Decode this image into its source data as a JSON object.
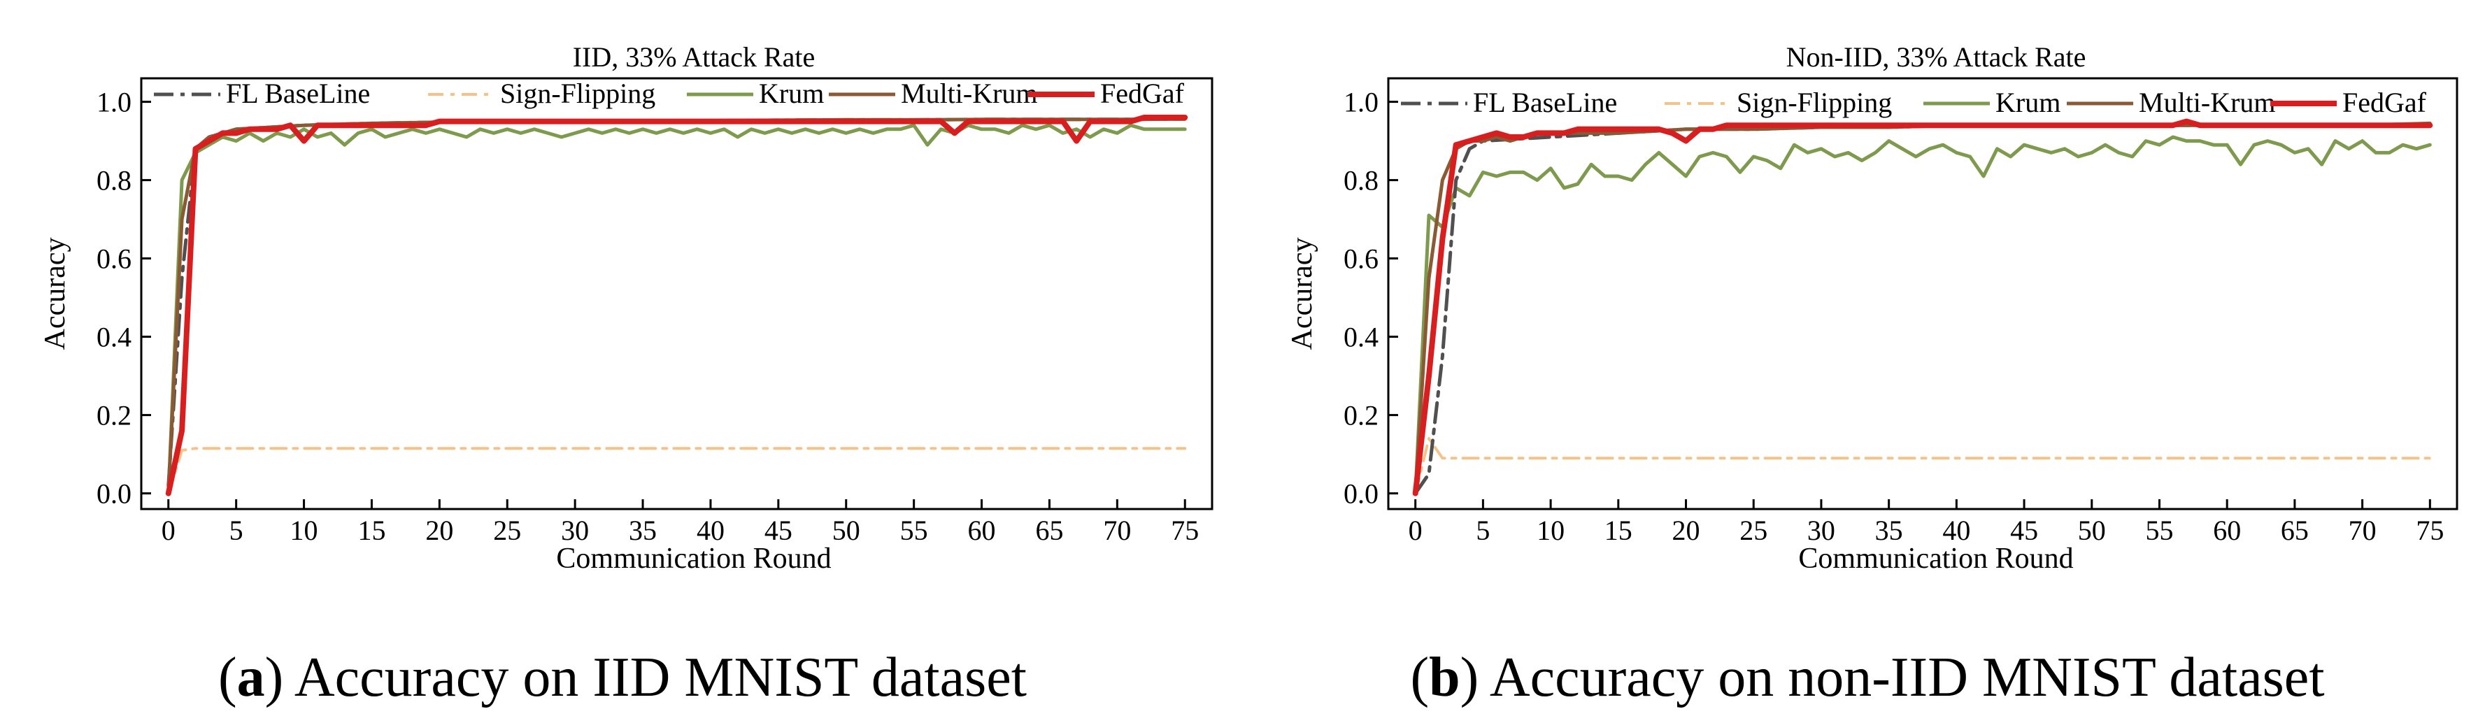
{
  "colors": {
    "baseline": "#505050",
    "sign_flipping": "#F5C28A",
    "krum": "#7E9A4C",
    "multi_krum": "#8B5A34",
    "fedgaf": "#D81E1E"
  },
  "captions": [
    {
      "letter": "a",
      "text": "Accuracy on IID MNIST dataset"
    },
    {
      "letter": "b",
      "text": "Accuracy on non-IID MNIST dataset"
    }
  ],
  "chart_data": [
    {
      "type": "line",
      "title": "IID, 33% Attack Rate",
      "xlabel": "Communication Round",
      "ylabel": "Accuracy",
      "xlim": [
        -2,
        77
      ],
      "ylim": [
        -0.04,
        1.06
      ],
      "xticks": [
        0,
        5,
        10,
        15,
        20,
        25,
        30,
        35,
        40,
        45,
        50,
        55,
        60,
        65,
        70,
        75
      ],
      "yticks": [
        0.0,
        0.2,
        0.4,
        0.6,
        0.8,
        1.0
      ],
      "ytick_labels": [
        "0.0",
        "0.2",
        "0.4",
        "0.6",
        "0.8",
        "1.0"
      ],
      "legend": [
        "FL BaseLine",
        "Sign-Flipping",
        "Krum",
        "Multi-Krum",
        "FedGaf"
      ],
      "series": [
        {
          "name": "FL BaseLine",
          "key": "baseline",
          "style": "dashdot",
          "x": [
            0,
            1,
            2,
            3,
            5,
            10,
            15,
            20,
            25,
            30,
            35,
            40,
            45,
            50,
            55,
            60,
            65,
            70,
            75
          ],
          "y": [
            0.02,
            0.55,
            0.88,
            0.91,
            0.93,
            0.94,
            0.945,
            0.948,
            0.95,
            0.95,
            0.952,
            0.952,
            0.953,
            0.954,
            0.954,
            0.955,
            0.955,
            0.955,
            0.956
          ]
        },
        {
          "name": "Sign-Flipping",
          "key": "sign_flipping",
          "style": "dashdot",
          "x": [
            0,
            1,
            2,
            75
          ],
          "y": [
            0.0,
            0.11,
            0.115,
            0.115
          ]
        },
        {
          "name": "Krum",
          "key": "krum",
          "style": "solid",
          "x": [
            0,
            1,
            2,
            3,
            4,
            5,
            6,
            7,
            8,
            9,
            10,
            11,
            12,
            13,
            14,
            15,
            16,
            17,
            18,
            19,
            20,
            21,
            22,
            23,
            24,
            25,
            26,
            27,
            28,
            29,
            30,
            31,
            32,
            33,
            34,
            35,
            36,
            37,
            38,
            39,
            40,
            41,
            42,
            43,
            44,
            45,
            46,
            47,
            48,
            49,
            50,
            51,
            52,
            53,
            54,
            55,
            56,
            57,
            58,
            59,
            60,
            61,
            62,
            63,
            64,
            65,
            66,
            67,
            68,
            69,
            70,
            71,
            72,
            73,
            74,
            75
          ],
          "y": [
            0.0,
            0.8,
            0.87,
            0.89,
            0.91,
            0.9,
            0.92,
            0.9,
            0.92,
            0.91,
            0.93,
            0.91,
            0.92,
            0.89,
            0.92,
            0.93,
            0.91,
            0.92,
            0.93,
            0.92,
            0.93,
            0.92,
            0.91,
            0.93,
            0.92,
            0.93,
            0.92,
            0.93,
            0.92,
            0.91,
            0.92,
            0.93,
            0.92,
            0.93,
            0.92,
            0.93,
            0.92,
            0.93,
            0.92,
            0.93,
            0.92,
            0.93,
            0.91,
            0.93,
            0.92,
            0.93,
            0.92,
            0.93,
            0.92,
            0.93,
            0.92,
            0.93,
            0.92,
            0.93,
            0.93,
            0.94,
            0.89,
            0.93,
            0.92,
            0.94,
            0.93,
            0.93,
            0.92,
            0.94,
            0.93,
            0.94,
            0.92,
            0.93,
            0.91,
            0.93,
            0.92,
            0.94,
            0.93,
            0.93,
            0.93,
            0.93
          ]
        },
        {
          "name": "Multi-Krum",
          "key": "multi_krum",
          "style": "solid",
          "x": [
            0,
            1,
            2,
            3,
            5,
            10,
            15,
            20,
            25,
            30,
            35,
            40,
            45,
            50,
            55,
            60,
            65,
            70,
            75
          ],
          "y": [
            0.0,
            0.7,
            0.88,
            0.91,
            0.93,
            0.94,
            0.945,
            0.948,
            0.95,
            0.95,
            0.952,
            0.952,
            0.953,
            0.954,
            0.954,
            0.955,
            0.955,
            0.955,
            0.956
          ]
        },
        {
          "name": "FedGaf",
          "key": "fedgaf",
          "style": "solid",
          "x": [
            0,
            1,
            2,
            3,
            4,
            5,
            6,
            7,
            8,
            9,
            10,
            11,
            12,
            13,
            14,
            15,
            16,
            17,
            18,
            19,
            20,
            21,
            22,
            23,
            24,
            25,
            26,
            27,
            28,
            29,
            30,
            31,
            32,
            33,
            34,
            35,
            36,
            37,
            38,
            39,
            40,
            41,
            42,
            43,
            44,
            45,
            46,
            47,
            48,
            49,
            50,
            51,
            52,
            53,
            54,
            55,
            56,
            57,
            58,
            59,
            60,
            61,
            62,
            63,
            64,
            65,
            66,
            67,
            68,
            69,
            70,
            71,
            72,
            73,
            74,
            75
          ],
          "y": [
            0.0,
            0.16,
            0.88,
            0.9,
            0.92,
            0.92,
            0.93,
            0.93,
            0.93,
            0.94,
            0.9,
            0.94,
            0.94,
            0.94,
            0.94,
            0.94,
            0.94,
            0.94,
            0.94,
            0.94,
            0.95,
            0.95,
            0.95,
            0.95,
            0.95,
            0.95,
            0.95,
            0.95,
            0.95,
            0.95,
            0.95,
            0.95,
            0.95,
            0.95,
            0.95,
            0.95,
            0.95,
            0.95,
            0.95,
            0.95,
            0.95,
            0.95,
            0.95,
            0.95,
            0.95,
            0.95,
            0.95,
            0.95,
            0.95,
            0.95,
            0.95,
            0.95,
            0.95,
            0.95,
            0.95,
            0.95,
            0.95,
            0.95,
            0.92,
            0.95,
            0.95,
            0.95,
            0.95,
            0.95,
            0.95,
            0.95,
            0.95,
            0.9,
            0.95,
            0.95,
            0.95,
            0.95,
            0.96,
            0.96,
            0.96,
            0.96
          ]
        }
      ]
    },
    {
      "type": "line",
      "title": "Non-IID, 33% Attack Rate",
      "xlabel": "Communication Round",
      "ylabel": "Accuracy",
      "xlim": [
        -2,
        77
      ],
      "ylim": [
        -0.04,
        1.06
      ],
      "xticks": [
        0,
        5,
        10,
        15,
        20,
        25,
        30,
        35,
        40,
        45,
        50,
        55,
        60,
        65,
        70,
        75
      ],
      "yticks": [
        0.0,
        0.2,
        0.4,
        0.6,
        0.8,
        1.0
      ],
      "ytick_labels": [
        "0.0",
        "0.2",
        "0.4",
        "0.6",
        "0.8",
        "1.0"
      ],
      "legend": [
        "FL BaseLine",
        "Sign-Flipping",
        "Krum",
        "Multi-Krum",
        "FedGaf"
      ],
      "series": [
        {
          "name": "FL BaseLine",
          "key": "baseline",
          "style": "dashdot",
          "x": [
            0,
            1,
            2,
            3,
            4,
            5,
            10,
            15,
            20,
            25,
            30,
            35,
            40,
            45,
            50,
            55,
            60,
            65,
            70,
            75
          ],
          "y": [
            0.0,
            0.05,
            0.35,
            0.8,
            0.88,
            0.9,
            0.91,
            0.92,
            0.93,
            0.93,
            0.935,
            0.935,
            0.94,
            0.94,
            0.94,
            0.94,
            0.94,
            0.94,
            0.94,
            0.94
          ]
        },
        {
          "name": "Sign-Flipping",
          "key": "sign_flipping",
          "style": "dashdot",
          "x": [
            0,
            1,
            2,
            75
          ],
          "y": [
            0.0,
            0.14,
            0.09,
            0.09
          ]
        },
        {
          "name": "Krum",
          "key": "krum",
          "style": "solid",
          "x": [
            0,
            1,
            2,
            3,
            4,
            5,
            6,
            7,
            8,
            9,
            10,
            11,
            12,
            13,
            14,
            15,
            16,
            17,
            18,
            19,
            20,
            21,
            22,
            23,
            24,
            25,
            26,
            27,
            28,
            29,
            30,
            31,
            32,
            33,
            34,
            35,
            36,
            37,
            38,
            39,
            40,
            41,
            42,
            43,
            44,
            45,
            46,
            47,
            48,
            49,
            50,
            51,
            52,
            53,
            54,
            55,
            56,
            57,
            58,
            59,
            60,
            61,
            62,
            63,
            64,
            65,
            66,
            67,
            68,
            69,
            70,
            71,
            72,
            73,
            74,
            75
          ],
          "y": [
            0.0,
            0.71,
            0.68,
            0.78,
            0.76,
            0.82,
            0.81,
            0.82,
            0.82,
            0.8,
            0.83,
            0.78,
            0.79,
            0.84,
            0.81,
            0.81,
            0.8,
            0.84,
            0.87,
            0.84,
            0.81,
            0.86,
            0.87,
            0.86,
            0.82,
            0.86,
            0.85,
            0.83,
            0.89,
            0.87,
            0.88,
            0.86,
            0.87,
            0.85,
            0.87,
            0.9,
            0.88,
            0.86,
            0.88,
            0.89,
            0.87,
            0.86,
            0.81,
            0.88,
            0.86,
            0.89,
            0.88,
            0.87,
            0.88,
            0.86,
            0.87,
            0.89,
            0.87,
            0.86,
            0.9,
            0.89,
            0.91,
            0.9,
            0.9,
            0.89,
            0.89,
            0.84,
            0.89,
            0.9,
            0.89,
            0.87,
            0.88,
            0.84,
            0.9,
            0.88,
            0.9,
            0.87,
            0.87,
            0.89,
            0.88,
            0.89
          ]
        },
        {
          "name": "Multi-Krum",
          "key": "multi_krum",
          "style": "solid",
          "x": [
            0,
            1,
            2,
            3,
            4,
            5,
            6,
            7,
            8,
            9,
            10,
            15,
            20,
            25,
            30,
            35,
            40,
            45,
            50,
            55,
            60,
            65,
            70,
            75
          ],
          "y": [
            0.0,
            0.55,
            0.8,
            0.88,
            0.9,
            0.9,
            0.91,
            0.9,
            0.91,
            0.92,
            0.92,
            0.92,
            0.93,
            0.93,
            0.935,
            0.935,
            0.94,
            0.94,
            0.94,
            0.94,
            0.94,
            0.94,
            0.94,
            0.945
          ]
        },
        {
          "name": "FedGaf",
          "key": "fedgaf",
          "style": "solid",
          "x": [
            0,
            1,
            2,
            3,
            4,
            5,
            6,
            7,
            8,
            9,
            10,
            11,
            12,
            13,
            14,
            15,
            16,
            17,
            18,
            19,
            20,
            21,
            22,
            23,
            24,
            25,
            26,
            27,
            28,
            29,
            30,
            31,
            32,
            33,
            34,
            35,
            36,
            37,
            38,
            39,
            40,
            41,
            42,
            43,
            44,
            45,
            46,
            47,
            48,
            49,
            50,
            51,
            52,
            53,
            54,
            55,
            56,
            57,
            58,
            59,
            60,
            61,
            62,
            63,
            64,
            65,
            66,
            67,
            68,
            69,
            70,
            71,
            72,
            73,
            74,
            75
          ],
          "y": [
            0.0,
            0.3,
            0.65,
            0.89,
            0.9,
            0.91,
            0.92,
            0.91,
            0.91,
            0.92,
            0.92,
            0.92,
            0.93,
            0.93,
            0.93,
            0.93,
            0.93,
            0.93,
            0.93,
            0.92,
            0.9,
            0.93,
            0.93,
            0.94,
            0.94,
            0.94,
            0.94,
            0.94,
            0.94,
            0.94,
            0.94,
            0.94,
            0.94,
            0.94,
            0.94,
            0.94,
            0.94,
            0.94,
            0.94,
            0.94,
            0.94,
            0.94,
            0.94,
            0.94,
            0.94,
            0.94,
            0.94,
            0.94,
            0.94,
            0.94,
            0.94,
            0.94,
            0.94,
            0.94,
            0.94,
            0.94,
            0.94,
            0.95,
            0.94,
            0.94,
            0.94,
            0.94,
            0.94,
            0.94,
            0.94,
            0.94,
            0.94,
            0.94,
            0.94,
            0.94,
            0.94,
            0.94,
            0.94,
            0.94,
            0.94,
            0.94
          ]
        }
      ]
    }
  ]
}
